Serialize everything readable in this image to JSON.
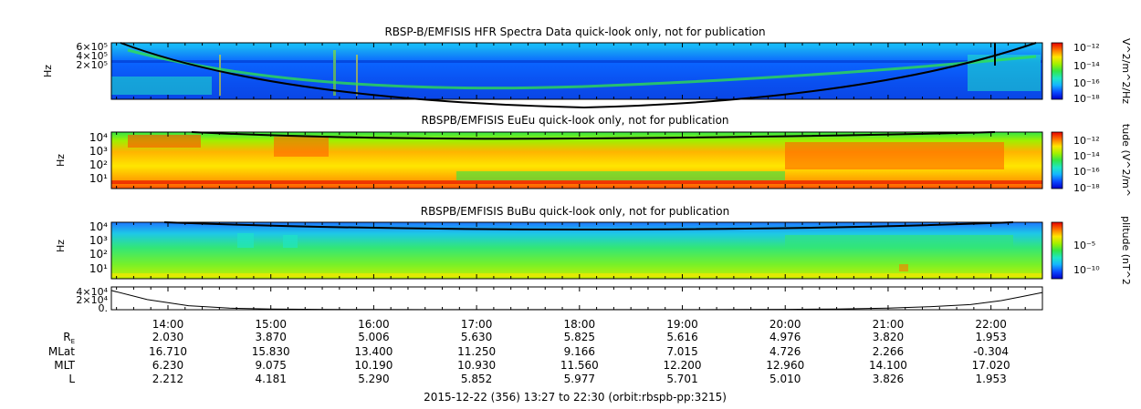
{
  "chart_data": [
    {
      "type": "heatmap",
      "title": "RBSP-B/EMFISIS  HFR Spectra Data quick-look only, not for publication",
      "ylabel": "Hz",
      "y_scale": "log",
      "y_ticks": [
        "6×10⁵",
        "4×10⁵",
        "2×10⁵"
      ],
      "colorbar": {
        "label": "V^2/m^2/Hz",
        "scale": "log",
        "ticks": [
          "10⁻¹²",
          "10⁻¹⁴",
          "10⁻¹⁶",
          "10⁻¹⁸"
        ]
      },
      "colormap": [
        "#0000c8",
        "#0a46ff",
        "#14b4ff",
        "#1ee6c8",
        "#32e646",
        "#a0f000",
        "#ffe600",
        "#ff7800",
        "#e60000"
      ]
    },
    {
      "type": "heatmap",
      "title": "RBSPB/EMFISIS  EuEu quick-look only, not for publication",
      "ylabel": "Hz",
      "y_scale": "log",
      "y_ticks": [
        "10⁴",
        "10³",
        "10²",
        "10¹"
      ],
      "colorbar": {
        "label": "tude (V^2/m^",
        "scale": "log",
        "ticks": [
          "10⁻¹²",
          "10⁻¹⁴",
          "10⁻¹⁶",
          "10⁻¹⁸"
        ]
      }
    },
    {
      "type": "heatmap",
      "title": "RBSPB/EMFISIS  BuBu quick-look only, not for publication",
      "ylabel": "Hz",
      "y_scale": "log",
      "y_ticks": [
        "10⁴",
        "10³",
        "10²",
        "10¹"
      ],
      "colorbar": {
        "label": "plitude (nT^2",
        "scale": "log",
        "ticks": [
          "10⁻⁵",
          "10⁻¹⁰"
        ]
      }
    },
    {
      "type": "line",
      "y_ticks": [
        "4×10⁴",
        "2×10⁴",
        "0."
      ],
      "x_ticks": [
        "14:00",
        "15:00",
        "16:00",
        "17:00",
        "18:00",
        "19:00",
        "20:00",
        "21:00",
        "22:00"
      ],
      "x_range_hours": [
        13.45,
        22.5
      ],
      "x_hours": [
        13.45,
        13.8,
        14.2,
        14.6,
        15,
        15.5,
        16,
        16.5,
        17,
        17.5,
        18,
        18.5,
        19,
        19.5,
        20,
        20.5,
        21,
        21.4,
        21.8,
        22.1,
        22.3,
        22.5
      ],
      "y": [
        38000,
        20000,
        8000,
        3000,
        1500,
        800,
        400,
        250,
        200,
        180,
        180,
        200,
        250,
        400,
        800,
        1500,
        3000,
        6000,
        10000,
        18000,
        26000,
        34000
      ],
      "ylim": [
        0,
        45000
      ]
    }
  ],
  "ephemeris": {
    "labels": [
      "R",
      "MLat",
      "MLT",
      "L"
    ],
    "r_subscript": "E",
    "rows": [
      [
        "2.030",
        "3.870",
        "5.006",
        "5.630",
        "5.825",
        "5.616",
        "4.976",
        "3.820",
        "1.953"
      ],
      [
        "16.710",
        "15.830",
        "13.400",
        "11.250",
        "9.166",
        "7.015",
        "4.726",
        "2.266",
        "-0.304"
      ],
      [
        "6.230",
        "9.075",
        "10.190",
        "10.930",
        "11.560",
        "12.200",
        "12.960",
        "14.100",
        "17.020"
      ],
      [
        "2.212",
        "4.181",
        "5.290",
        "5.852",
        "5.977",
        "5.701",
        "5.010",
        "3.826",
        "1.953"
      ]
    ]
  },
  "footer": "2015-12-22 (356) 13:27 to 22:30 (orbit:rbspb-pp:3215)"
}
